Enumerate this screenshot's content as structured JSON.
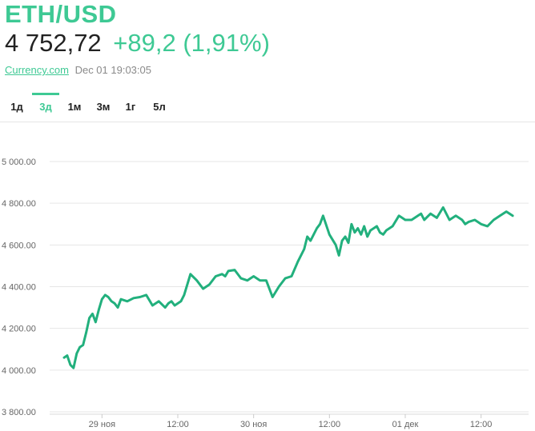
{
  "header": {
    "title": "ETH/USD",
    "price": "4 752,72",
    "change": "+89,2 (1,91%)",
    "source": "Currency.com",
    "timestamp": "Dec 01 19:03:05"
  },
  "tabs": [
    {
      "label": "1д",
      "active": false
    },
    {
      "label": "3д",
      "active": true
    },
    {
      "label": "1м",
      "active": false
    },
    {
      "label": "3м",
      "active": false
    },
    {
      "label": "1г",
      "active": false
    },
    {
      "label": "5л",
      "active": false
    }
  ],
  "colors": {
    "accent": "#3ec994",
    "line": "#22b07d",
    "text": "#222222",
    "muted": "#8a8a8a"
  },
  "chart_data": {
    "type": "line",
    "ylim": [
      3800,
      5000
    ],
    "yticks": [
      5000,
      4800,
      4600,
      4400,
      4200,
      4000,
      3800
    ],
    "ytick_labels": [
      "5 000.00",
      "4 800.00",
      "4 600.00",
      "4 400.00",
      "4 200.00",
      "4 000.00",
      "3 800.00"
    ],
    "xlim": [
      0,
      72
    ],
    "xticks": [
      6,
      18,
      30,
      42,
      54,
      66
    ],
    "xtick_labels": [
      "29 ноя",
      "12:00",
      "30 ноя",
      "12:00",
      "01 дек",
      "12:00"
    ],
    "grid": true,
    "series": [
      {
        "x": [
          0,
          0.5,
          1,
          1.5,
          2,
          2.5,
          3,
          3.5,
          4,
          4.5,
          5,
          5.5,
          6,
          6.5,
          7,
          7.5,
          8,
          8.5,
          9,
          10,
          11,
          12,
          13,
          14,
          15,
          16,
          16.5,
          17,
          17.5,
          18,
          18.5,
          19,
          20,
          21,
          22,
          23,
          24,
          25,
          25.5,
          26,
          27,
          28,
          29,
          29.5,
          30,
          31,
          32,
          33,
          34,
          35,
          36,
          37,
          38,
          38.5,
          39,
          40,
          40.5,
          41,
          42,
          43,
          43.5,
          44,
          44.5,
          45,
          45.5,
          46,
          46.5,
          47,
          47.5,
          48,
          48.5,
          49,
          49.5,
          50,
          50.5,
          51,
          52,
          53,
          53.5,
          54,
          55,
          56,
          56.5,
          57,
          58,
          59,
          60,
          61,
          62,
          63,
          63.5,
          64,
          65,
          66,
          67,
          68,
          69,
          70,
          71
        ],
        "values": [
          4060,
          4070,
          4025,
          4010,
          4080,
          4110,
          4120,
          4180,
          4250,
          4270,
          4230,
          4290,
          4340,
          4360,
          4350,
          4330,
          4320,
          4300,
          4340,
          4330,
          4345,
          4350,
          4360,
          4310,
          4330,
          4300,
          4320,
          4330,
          4310,
          4320,
          4330,
          4360,
          4460,
          4430,
          4390,
          4410,
          4450,
          4460,
          4450,
          4475,
          4480,
          4440,
          4430,
          4440,
          4450,
          4430,
          4430,
          4350,
          4400,
          4440,
          4450,
          4520,
          4580,
          4640,
          4620,
          4680,
          4700,
          4740,
          4650,
          4600,
          4550,
          4620,
          4640,
          4610,
          4700,
          4660,
          4680,
          4650,
          4690,
          4640,
          4670,
          4680,
          4690,
          4660,
          4650,
          4670,
          4690,
          4740,
          4730,
          4720,
          4720,
          4740,
          4750,
          4720,
          4750,
          4730,
          4780,
          4720,
          4740,
          4720,
          4700,
          4710,
          4720,
          4700,
          4690,
          4720,
          4740,
          4760,
          4740
        ]
      }
    ]
  }
}
